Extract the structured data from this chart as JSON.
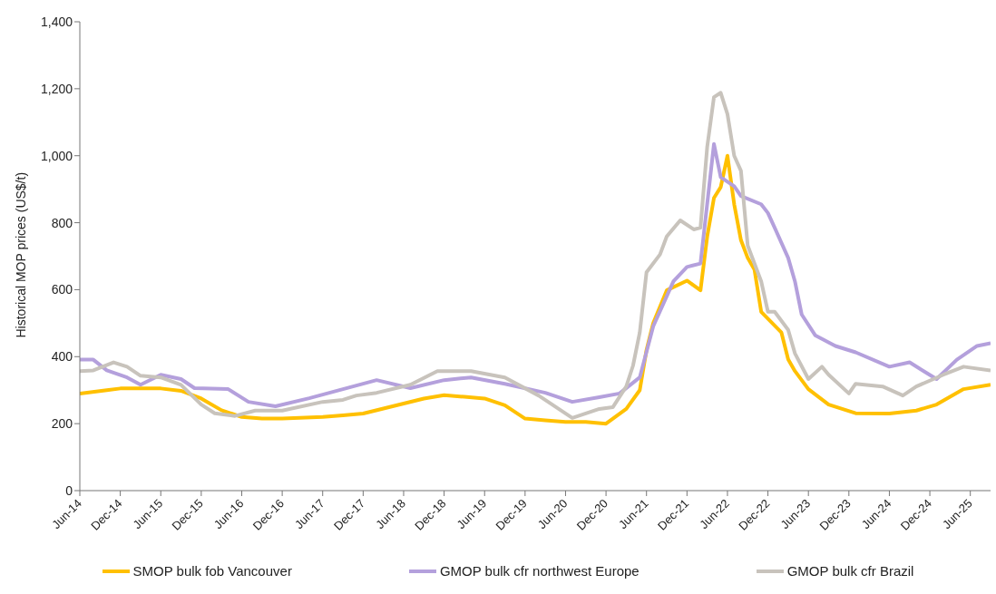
{
  "chart_data": {
    "type": "line",
    "ylabel": "Historical MOP prices (US$/t)",
    "xlim": [
      "2014-06",
      "2025-09"
    ],
    "xticks": [
      {
        "value": "2014-06",
        "label": "Jun-14"
      },
      {
        "value": "2014-12",
        "label": "Dec-14"
      },
      {
        "value": "2015-06",
        "label": "Jun-15"
      },
      {
        "value": "2015-12",
        "label": "Dec-15"
      },
      {
        "value": "2016-06",
        "label": "Jun-16"
      },
      {
        "value": "2016-12",
        "label": "Dec-16"
      },
      {
        "value": "2017-06",
        "label": "Jun-17"
      },
      {
        "value": "2017-12",
        "label": "Dec-17"
      },
      {
        "value": "2018-06",
        "label": "Jun-18"
      },
      {
        "value": "2018-12",
        "label": "Dec-18"
      },
      {
        "value": "2019-06",
        "label": "Jun-19"
      },
      {
        "value": "2019-12",
        "label": "Dec-19"
      },
      {
        "value": "2020-06",
        "label": "Jun-20"
      },
      {
        "value": "2020-12",
        "label": "Dec-20"
      },
      {
        "value": "2021-06",
        "label": "Jun-21"
      },
      {
        "value": "2021-12",
        "label": "Dec-21"
      },
      {
        "value": "2022-06",
        "label": "Jun-22"
      },
      {
        "value": "2022-12",
        "label": "Dec-22"
      },
      {
        "value": "2023-06",
        "label": "Jun-23"
      },
      {
        "value": "2023-12",
        "label": "Dec-23"
      },
      {
        "value": "2024-06",
        "label": "Jun-24"
      },
      {
        "value": "2024-12",
        "label": "Dec-24"
      },
      {
        "value": "2025-06",
        "label": "Jun-25"
      }
    ],
    "ylim": [
      0,
      1400
    ],
    "yticks": [
      0,
      200,
      400,
      600,
      800,
      {
        "value": 1000,
        "label": "1,000"
      },
      {
        "value": 1200,
        "label": "1,200"
      },
      {
        "value": 1400,
        "label": "1,400"
      }
    ],
    "legend": "bottom",
    "line_style": "solid",
    "series": [
      {
        "name": "SMOP bulk fob Vancouver",
        "color": "#ffc000",
        "x": [
          "2014-06",
          "2014-10",
          "2014-12",
          "2015-06",
          "2015-09",
          "2015-12",
          "2016-03",
          "2016-06",
          "2016-09",
          "2016-12",
          "2017-06",
          "2017-09",
          "2017-12",
          "2018-03",
          "2018-06",
          "2018-09",
          "2018-12",
          "2019-03",
          "2019-06",
          "2019-09",
          "2019-12",
          "2020-03",
          "2020-06",
          "2020-09",
          "2020-12",
          "2021-03",
          "2021-05",
          "2021-06",
          "2021-07",
          "2021-09",
          "2021-12",
          "2022-02",
          "2022-03",
          "2022-04",
          "2022-05",
          "2022-06",
          "2022-07",
          "2022-08",
          "2022-09",
          "2022-10",
          "2022-11",
          "2023-02",
          "2023-03",
          "2023-04",
          "2023-06",
          "2023-09",
          "2024-01",
          "2024-06",
          "2024-10",
          "2025-01",
          "2025-05",
          "2025-09"
        ],
        "values": [
          290,
          300,
          305,
          305,
          298,
          275,
          240,
          220,
          215,
          215,
          220,
          225,
          230,
          245,
          260,
          275,
          285,
          280,
          275,
          255,
          215,
          210,
          205,
          205,
          200,
          244,
          300,
          420,
          500,
          598,
          627,
          598,
          759,
          874,
          906,
          1000,
          855,
          748,
          695,
          660,
          534,
          472,
          392,
          357,
          303,
          257,
          231,
          230,
          239,
          257,
          303,
          316
        ]
      },
      {
        "name": "GMOP bulk cfr northwest Europe",
        "color": "#b4a0dc",
        "x": [
          "2014-06",
          "2014-08",
          "2014-10",
          "2015-01",
          "2015-03",
          "2015-06",
          "2015-09",
          "2015-11",
          "2016-04",
          "2016-07",
          "2016-11",
          "2017-04",
          "2017-09",
          "2018-02",
          "2018-07",
          "2018-12",
          "2019-04",
          "2019-09",
          "2020-03",
          "2020-07",
          "2020-11",
          "2021-02",
          "2021-05",
          "2021-07",
          "2021-10",
          "2021-12",
          "2022-02",
          "2022-04",
          "2022-05",
          "2022-07",
          "2022-08",
          "2022-11",
          "2022-12",
          "2023-01",
          "2023-03",
          "2023-04",
          "2023-05",
          "2023-07",
          "2023-10",
          "2024-01",
          "2024-06",
          "2024-09",
          "2025-01",
          "2025-04",
          "2025-07",
          "2025-09"
        ],
        "values": [
          391,
          391,
          359,
          338,
          316,
          346,
          333,
          306,
          303,
          265,
          252,
          276,
          303,
          330,
          306,
          330,
          338,
          319,
          292,
          265,
          279,
          290,
          338,
          491,
          625,
          668,
          678,
          1035,
          936,
          909,
          880,
          855,
          829,
          785,
          695,
          625,
          526,
          464,
          432,
          413,
          370,
          383,
          333,
          391,
          432,
          440
        ]
      },
      {
        "name": "GMOP bulk cfr Brazil",
        "color": "#c8c3bc",
        "x": [
          "2014-06",
          "2014-08",
          "2014-11",
          "2015-01",
          "2015-03",
          "2015-06",
          "2015-09",
          "2015-12",
          "2016-02",
          "2016-05",
          "2016-08",
          "2016-12",
          "2017-06",
          "2017-09",
          "2017-11",
          "2018-02",
          "2018-07",
          "2018-11",
          "2019-04",
          "2019-09",
          "2020-02",
          "2020-07",
          "2020-11",
          "2021-01",
          "2021-03",
          "2021-04",
          "2021-05",
          "2021-06",
          "2021-08",
          "2021-09",
          "2021-11",
          "2022-01",
          "2022-02",
          "2022-03",
          "2022-04",
          "2022-05",
          "2022-06",
          "2022-07",
          "2022-08",
          "2022-09",
          "2022-11",
          "2022-12",
          "2023-01",
          "2023-03",
          "2023-04",
          "2023-06",
          "2023-08",
          "2023-09",
          "2023-12",
          "2024-01",
          "2024-05",
          "2024-08",
          "2024-10",
          "2025-02",
          "2025-05",
          "2025-09"
        ],
        "values": [
          357,
          359,
          383,
          370,
          343,
          338,
          316,
          257,
          231,
          223,
          239,
          239,
          265,
          271,
          284,
          292,
          316,
          357,
          357,
          338,
          284,
          217,
          244,
          249,
          311,
          373,
          472,
          652,
          705,
          759,
          807,
          780,
          785,
          1027,
          1175,
          1188,
          1124,
          1000,
          955,
          732,
          625,
          534,
          534,
          480,
          410,
          333,
          370,
          346,
          290,
          319,
          311,
          284,
          311,
          346,
          370,
          359
        ]
      }
    ]
  }
}
